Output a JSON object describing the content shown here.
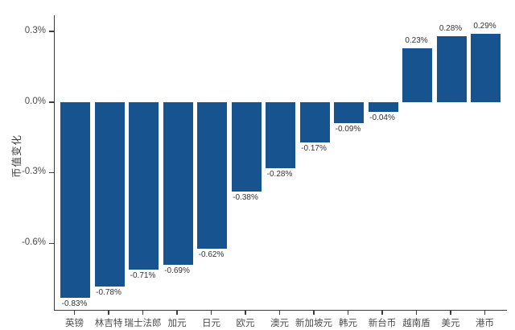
{
  "chart_data": {
    "type": "bar",
    "title": "",
    "xlabel": "",
    "ylabel": "币值变化",
    "categories": [
      "英镑",
      "林吉特",
      "瑞士法郎",
      "加元",
      "日元",
      "欧元",
      "澳元",
      "新加坡元",
      "韩元",
      "新台币",
      "越南盾",
      "美元",
      "港币"
    ],
    "values": [
      -0.83,
      -0.78,
      -0.71,
      -0.69,
      -0.62,
      -0.38,
      -0.28,
      -0.17,
      -0.09,
      -0.04,
      0.23,
      0.28,
      0.29
    ],
    "bar_labels": [
      "-0.83%",
      "-0.78%",
      "-0.71%",
      "-0.69%",
      "-0.62%",
      "-0.38%",
      "-0.28%",
      "-0.17%",
      "-0.09%",
      "-0.04%",
      "0.23%",
      "0.28%",
      "0.29%"
    ],
    "yticks": [
      {
        "label": "0.3%",
        "value": 0.3
      },
      {
        "label": "0.0%",
        "value": 0.0
      },
      {
        "label": "-0.3%",
        "value": -0.3
      },
      {
        "label": "-0.6%",
        "value": -0.6
      }
    ],
    "ylim": [
      -0.91,
      0.37
    ],
    "grid": false,
    "bar_color": "#17538E",
    "axis_color": "#3c3c3c",
    "tick_label_color": "#4d4d4d",
    "value_label_color": "#333333",
    "background_color": "#ffffff"
  }
}
